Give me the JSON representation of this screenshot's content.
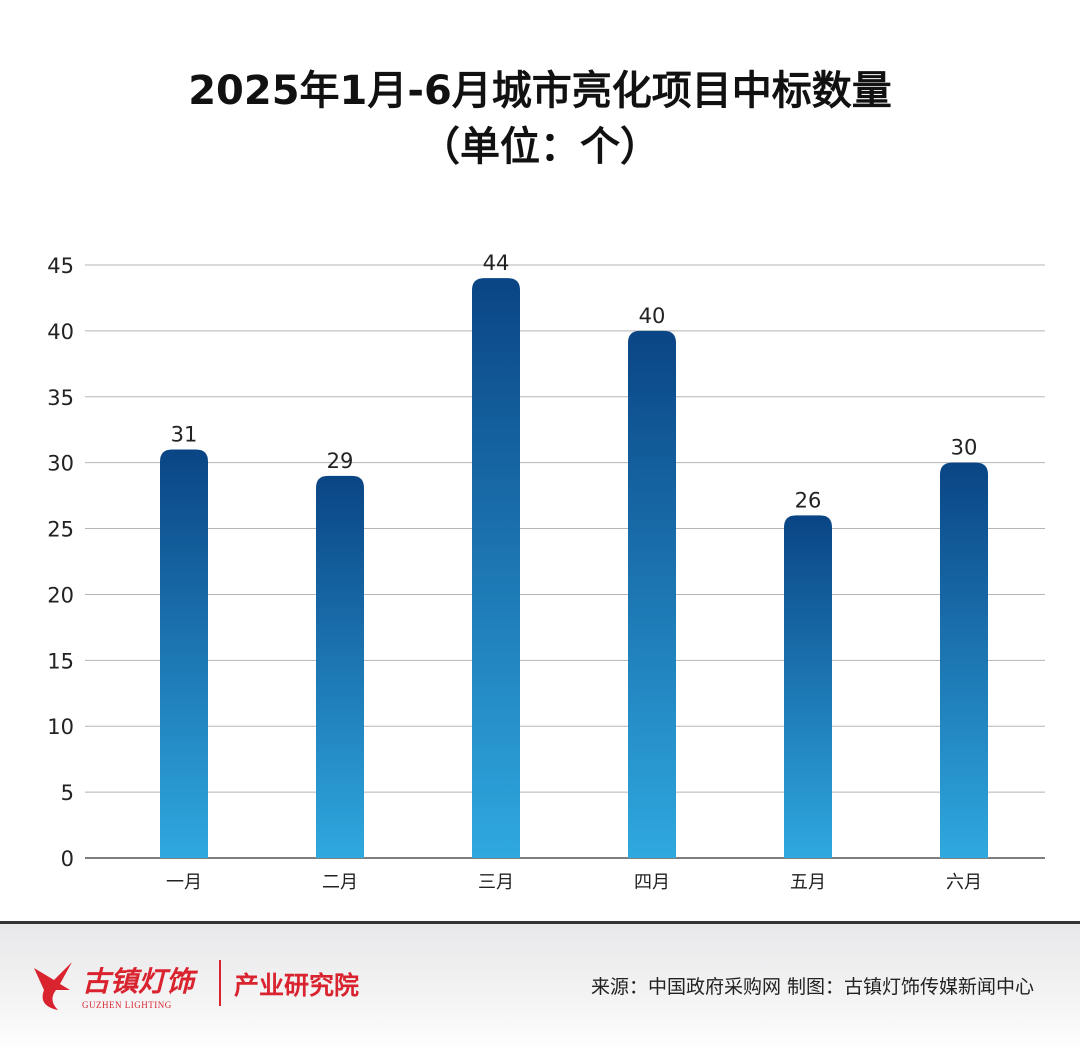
{
  "chart_data": {
    "type": "bar",
    "title": "2025年1月-6月城市亮化项目中标数量",
    "subtitle": "（单位：个）",
    "categories": [
      "一月",
      "二月",
      "三月",
      "四月",
      "五月",
      "六月"
    ],
    "values": [
      31,
      29,
      44,
      40,
      26,
      30
    ],
    "ylim": [
      0,
      45
    ],
    "yticks": [
      0,
      5,
      10,
      15,
      20,
      25,
      30,
      35,
      40,
      45
    ],
    "grid": true,
    "data_labels": true,
    "colors": {
      "bar_top": "#0a4585",
      "bar_bottom": "#2fa8e0",
      "grid": "#b5b5b5",
      "axis": "#555555"
    }
  },
  "footer": {
    "logo_cn": "古镇灯饰",
    "logo_en": "GUZHEN LIGHTING",
    "institute": "产业研究院",
    "source": "来源：中国政府采购网 制图：古镇灯饰传媒新闻中心",
    "brand_color": "#d9232e"
  }
}
